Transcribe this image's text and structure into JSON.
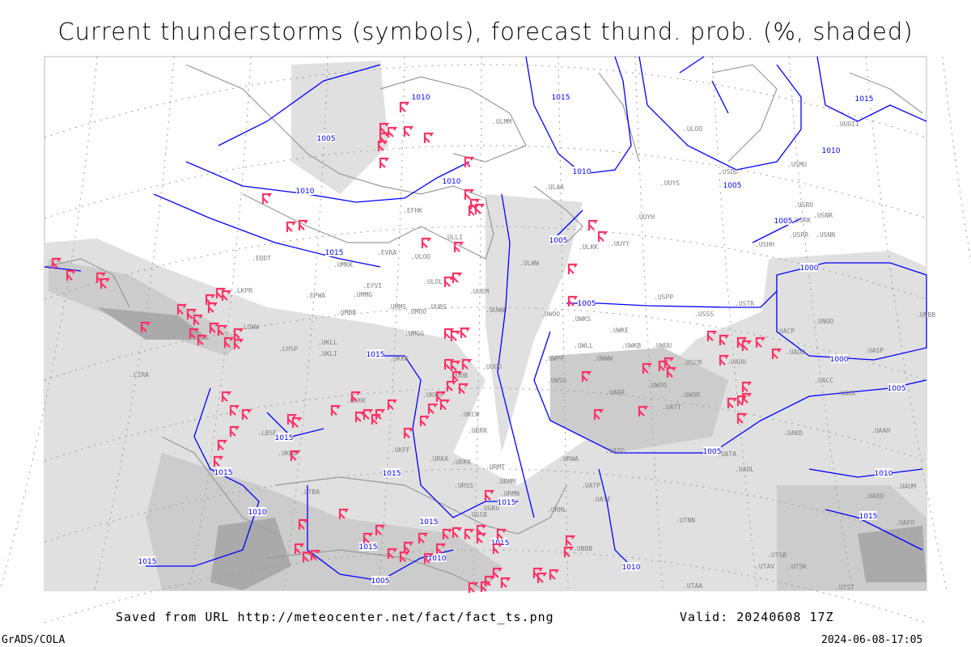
{
  "title": "Current thunderstorms (symbols), forecast thund. prob. (%, shaded)",
  "footer": {
    "source": "Saved from URL http://meteocenter.net/fact/fact_ts.png",
    "valid": "Valid: 20240608 17Z",
    "software": "GrADS/COLA",
    "timestamp": "2024-06-08-17:05"
  },
  "colors": {
    "isobar": "#0000ff",
    "thunderstorm_symbol": "#ff3366",
    "coastline": "#999999",
    "shading_light": "#e0e0e0",
    "shading_mid": "#cccccc",
    "shading_dark": "#aaaaaa"
  },
  "legend": {
    "symbol_icon": "thunderstorm-symbol-icon",
    "shading": "thunderstorm probability percent"
  },
  "isobar_labels": [
    "1010",
    "1015",
    "1005",
    "1010",
    "1010",
    "1010",
    "1005",
    "1015",
    "1010",
    "1005",
    "1015",
    "1005",
    "1005",
    "1000",
    "1000",
    "1015",
    "1005",
    "1015",
    "1005",
    "1015",
    "1015",
    "1015",
    "1015",
    "1010",
    "1015",
    "1015",
    "1010",
    "1015",
    "1005",
    "1010",
    "1010",
    "1015"
  ],
  "stations": [
    "ULMM",
    "ULOO",
    "UUOII",
    "USDD",
    "USMU",
    "UUYS",
    "ULAA",
    "EFHK",
    "UUYH",
    "USRO",
    "USRK",
    "USNR",
    "USRR",
    "USNN",
    "ULKK",
    "UUYY",
    "USHH",
    "ULLI",
    "EVRA",
    "ULOO",
    "UMKK",
    "EDDT",
    "EYVI",
    "UMMG",
    "ULOL",
    "UUEM",
    "UUWW",
    "EPWA",
    "UMMS",
    "UMOO",
    "UUBS",
    "UMBB",
    "ULWW",
    "UWOO",
    "UWKS",
    "USPP",
    "USSS",
    "USTR",
    "UWKE",
    "UNBB",
    "UNOO",
    "UACP",
    "UAOO",
    "UASP",
    "LKPR",
    "LOWW",
    "LHSP",
    "UKLL",
    "UKLI",
    "UMGG",
    "UUOO",
    "UKKK",
    "UWPP",
    "UWLL",
    "UWWW",
    "UWKB",
    "UWUU",
    "USCM",
    "UAUU",
    "UACC",
    "UAKK",
    "UWSS",
    "UUOB",
    "UKHH",
    "UKKK",
    "UKCW",
    "UARR",
    "UWOO",
    "UWOR",
    "UATT",
    "LBSF",
    "URRR",
    "LIRA",
    "UKFF",
    "URWA",
    "UATG",
    "UATA",
    "UAKD",
    "UAAH",
    "UKBB",
    "URKA",
    "URKK",
    "URMT",
    "UAOL",
    "URMM",
    "URSS",
    "UATP",
    "UATE",
    "URMN",
    "LTBA",
    "UGSB",
    "URML",
    "UBBB",
    "UGKO",
    "UTNN",
    "UAOO",
    "UTSB",
    "UTAV",
    "UTSK",
    "UTAA",
    "UTST",
    "UAFO",
    "UAUM"
  ]
}
